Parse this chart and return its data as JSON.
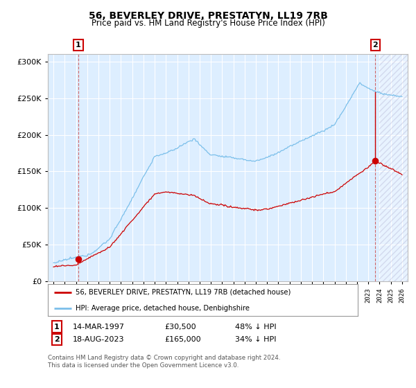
{
  "title": "56, BEVERLEY DRIVE, PRESTATYN, LL19 7RB",
  "subtitle": "Price paid vs. HM Land Registry's House Price Index (HPI)",
  "hpi_color": "#7bbfea",
  "price_color": "#cc0000",
  "dot_color": "#cc0000",
  "sale1_date_label": "14-MAR-1997",
  "sale1_price": 30500,
  "sale1_label": "£30,500",
  "sale1_hpi_note": "48% ↓ HPI",
  "sale1_year": 1997.21,
  "sale2_date_label": "18-AUG-2023",
  "sale2_price": 165000,
  "sale2_label": "£165,000",
  "sale2_hpi_note": "34% ↓ HPI",
  "sale2_year": 2023.63,
  "legend_house_label": "56, BEVERLEY DRIVE, PRESTATYN, LL19 7RB (detached house)",
  "legend_hpi_label": "HPI: Average price, detached house, Denbighshire",
  "footnote": "Contains HM Land Registry data © Crown copyright and database right 2024.\nThis data is licensed under the Open Government Licence v3.0.",
  "xmin": 1994.5,
  "xmax": 2026.5,
  "ymin": 0,
  "ymax": 310000,
  "plot_bg": "#ddeeff",
  "hatch_start": 2024.0
}
